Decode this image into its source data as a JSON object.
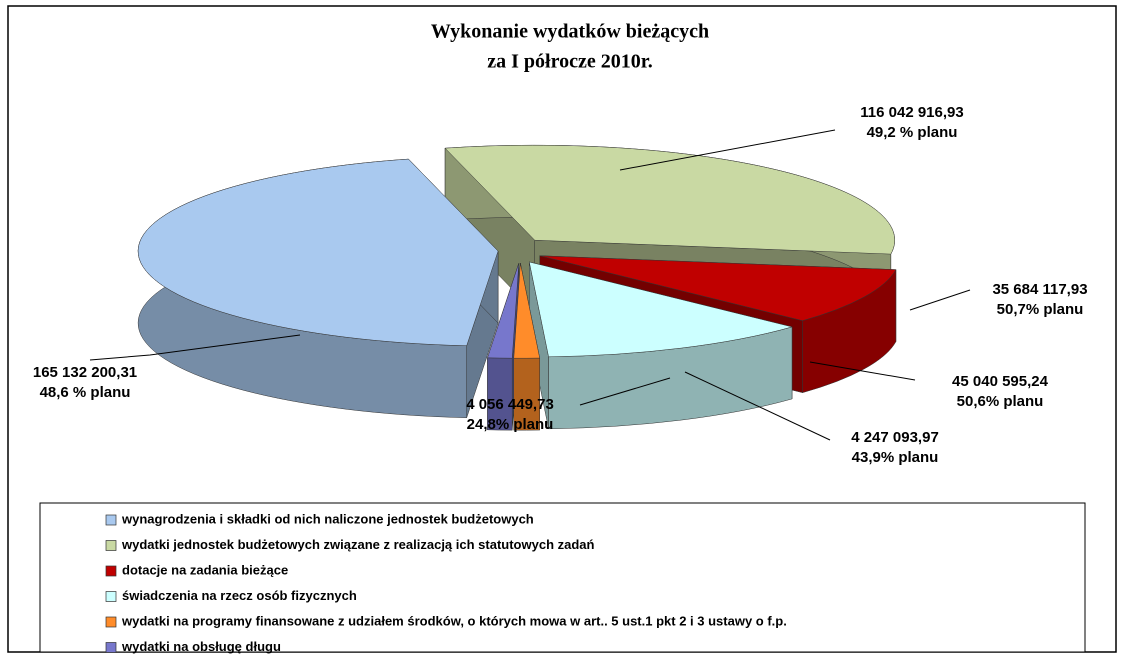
{
  "chart_data": {
    "type": "pie",
    "title": [
      "Wykonanie wydatków bieżących",
      "za I półrocze  2010r."
    ],
    "categories": [
      "wynagrodzenia i składki od nich naliczone jednostek budżetowych",
      "wydatki jednostek budżetowych związane z realizacją ich statutowych zadań",
      "dotacje na zadania bieżące",
      "świadczenia na rzecz osób fizycznych",
      "wydatki na programy finansowane z udziałem środków, o których mowa w art.. 5 ust.1 pkt 2 i 3 ustawy o f.p.",
      "wydatki na obsługę długu"
    ],
    "values": [
      165132200.31,
      116042916.93,
      35684117.93,
      45040595.24,
      4247093.97,
      4056449.73
    ],
    "value_labels": [
      "165 132 200,31",
      "116 042 916,93",
      "35 684 117,93",
      "45 040 595,24",
      "4 247 093,97",
      "4 056 449,73"
    ],
    "plan_labels": [
      "48,6 % planu",
      "49,2 % planu",
      "50,7% planu",
      "50,6% planu",
      "43,9% planu",
      "24,8% planu"
    ],
    "colors": [
      "#a9c9ef",
      "#c9d9a3",
      "#c00000",
      "#ccffff",
      "#ff8c2a",
      "#7777cc"
    ],
    "legend": "bottom"
  }
}
